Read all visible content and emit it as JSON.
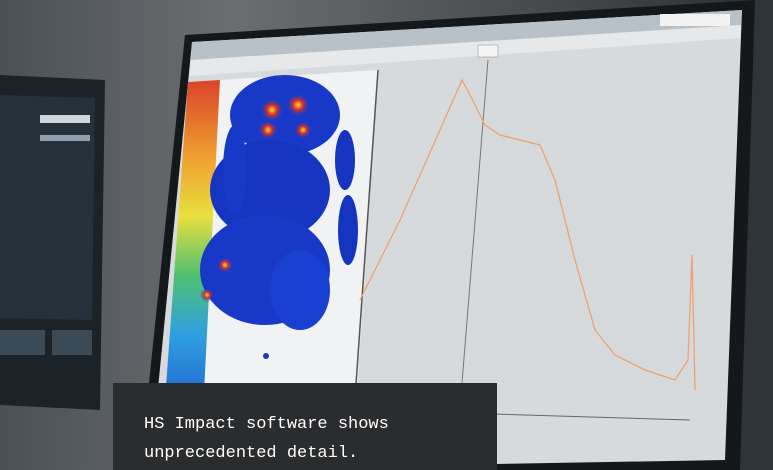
{
  "caption": "HS Impact software shows unprecedented detail."
}
